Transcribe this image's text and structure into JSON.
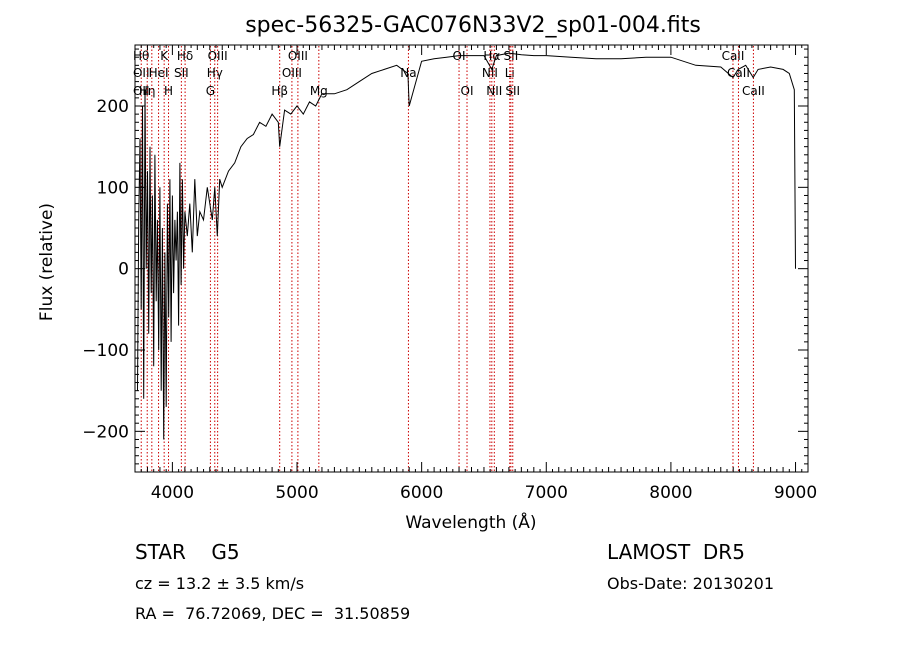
{
  "chart_data": {
    "type": "line",
    "title": "spec-56325-GAC076N33V2_sp01-004.fits",
    "xlabel": "Wavelength (Å)",
    "ylabel": "Flux (relative)",
    "xlim": [
      3700,
      9100
    ],
    "ylim": [
      -250,
      275
    ],
    "x_ticks": [
      4000,
      5000,
      6000,
      7000,
      8000,
      9000
    ],
    "y_ticks": [
      -200,
      -100,
      0,
      100,
      200
    ],
    "grid": false,
    "line_color": "#000000",
    "marker_color": "#cc0000",
    "series": [
      {
        "x": [
          3720,
          3730,
          3740,
          3750,
          3760,
          3770,
          3780,
          3790,
          3800,
          3810,
          3820,
          3830,
          3840,
          3850,
          3860,
          3870,
          3880,
          3890,
          3900,
          3910,
          3920,
          3930,
          3940,
          3950,
          3960,
          3970,
          3980,
          3990,
          4000,
          4010,
          4020,
          4030,
          4040,
          4050,
          4060,
          4070,
          4080,
          4090,
          4100,
          4120,
          4140,
          4160,
          4180,
          4200,
          4220,
          4250,
          4280,
          4300,
          4320,
          4340,
          4360,
          4380,
          4400,
          4450,
          4500,
          4550,
          4600,
          4650,
          4700,
          4750,
          4800,
          4850,
          4861,
          4900,
          4950,
          5000,
          5050,
          5100,
          5150,
          5200,
          5300,
          5400,
          5500,
          5600,
          5700,
          5800,
          5890,
          5900,
          6000,
          6100,
          6200,
          6300,
          6400,
          6500,
          6563,
          6600,
          6700,
          6800,
          6900,
          7000,
          7200,
          7400,
          7600,
          7800,
          8000,
          8200,
          8400,
          8498,
          8540,
          8600,
          8660,
          8700,
          8800,
          8900,
          8950,
          8990,
          9000
        ],
        "y": [
          -150,
          60,
          160,
          -50,
          200,
          -160,
          220,
          0,
          120,
          -80,
          150,
          -30,
          90,
          -120,
          140,
          -40,
          60,
          -100,
          100,
          -150,
          50,
          -210,
          20,
          -170,
          80,
          -60,
          110,
          -90,
          90,
          -30,
          60,
          10,
          70,
          -70,
          130,
          -20,
          110,
          0,
          70,
          40,
          80,
          20,
          110,
          40,
          70,
          60,
          100,
          80,
          60,
          100,
          40,
          110,
          100,
          120,
          130,
          150,
          160,
          165,
          180,
          175,
          190,
          180,
          150,
          195,
          190,
          200,
          190,
          205,
          200,
          215,
          215,
          220,
          230,
          240,
          245,
          250,
          240,
          200,
          255,
          258,
          260,
          262,
          262,
          262,
          245,
          262,
          265,
          263,
          262,
          262,
          260,
          258,
          258,
          260,
          260,
          250,
          248,
          235,
          245,
          250,
          235,
          245,
          248,
          245,
          240,
          220,
          0
        ]
      }
    ],
    "line_markers": [
      {
        "x": 3750,
        "top": "Hθ",
        "mid": "OII",
        "low": "OII"
      },
      {
        "x": 3798,
        "top": "",
        "mid": "",
        "low": "Hη"
      },
      {
        "x": 3835,
        "top": "",
        "mid": "",
        "low": ""
      },
      {
        "x": 3889,
        "top": "",
        "mid": "HeI",
        "low": ""
      },
      {
        "x": 3934,
        "top": "K",
        "mid": "",
        "low": ""
      },
      {
        "x": 3969,
        "top": "",
        "mid": "",
        "low": "H"
      },
      {
        "x": 4072,
        "top": "",
        "mid": "SII",
        "low": ""
      },
      {
        "x": 4102,
        "top": "Hδ",
        "mid": "",
        "low": ""
      },
      {
        "x": 4305,
        "top": "",
        "mid": "",
        "low": "G"
      },
      {
        "x": 4340,
        "top": "",
        "mid": "Hγ",
        "low": ""
      },
      {
        "x": 4363,
        "top": "OIII",
        "mid": "",
        "low": ""
      },
      {
        "x": 4861,
        "top": "",
        "mid": "",
        "low": "Hβ"
      },
      {
        "x": 4959,
        "top": "",
        "mid": "OIII",
        "low": ""
      },
      {
        "x": 5007,
        "top": "OIII",
        "mid": "",
        "low": ""
      },
      {
        "x": 5175,
        "top": "",
        "mid": "",
        "low": "Mg"
      },
      {
        "x": 5894,
        "top": "",
        "mid": "Na",
        "low": ""
      },
      {
        "x": 6300,
        "top": "OI",
        "mid": "",
        "low": ""
      },
      {
        "x": 6364,
        "top": "",
        "mid": "",
        "low": "OI"
      },
      {
        "x": 6548,
        "top": "",
        "mid": "NII",
        "low": ""
      },
      {
        "x": 6563,
        "top": "Hα",
        "mid": "",
        "low": ""
      },
      {
        "x": 6583,
        "top": "",
        "mid": "",
        "low": "NII"
      },
      {
        "x": 6707,
        "top": "",
        "mid": "Li",
        "low": ""
      },
      {
        "x": 6716,
        "top": "SII",
        "mid": "",
        "low": ""
      },
      {
        "x": 6731,
        "top": "",
        "mid": "",
        "low": "SII"
      },
      {
        "x": 8498,
        "top": "CaII",
        "mid": "",
        "low": ""
      },
      {
        "x": 8542,
        "top": "",
        "mid": "CaII",
        "low": ""
      },
      {
        "x": 8662,
        "top": "",
        "mid": "",
        "low": "CaII"
      }
    ]
  },
  "footer": {
    "class_text": "STAR    G5",
    "survey_text": "LAMOST  DR5",
    "cz_text": "cz = 13.2 ± 3.5 km/s",
    "obs_date_text": "Obs-Date: 20130201",
    "coords_text": "RA =  76.72069, DEC =  31.50859"
  }
}
